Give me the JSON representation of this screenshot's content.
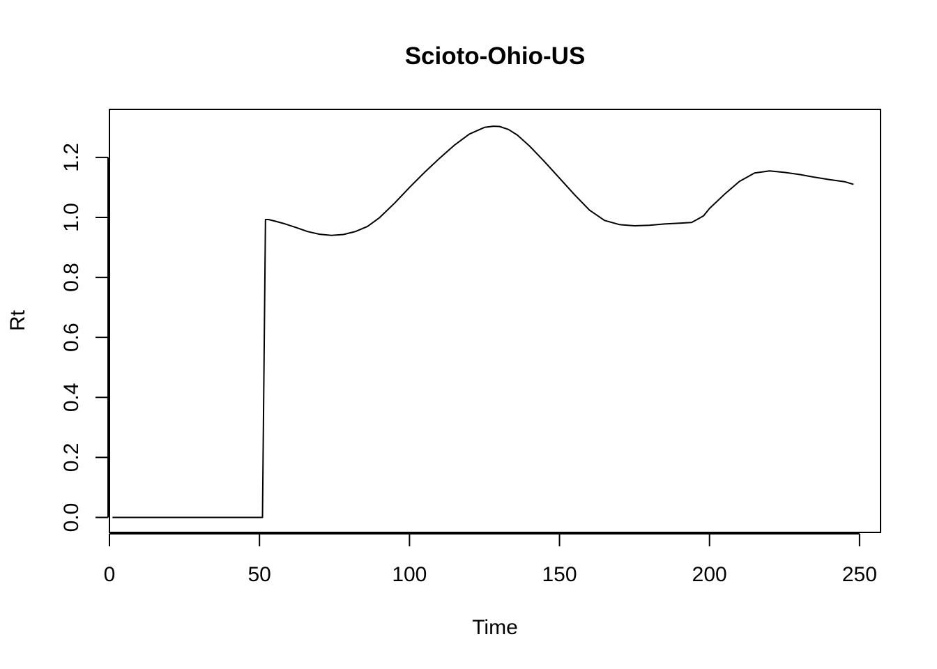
{
  "chart_data": {
    "type": "line",
    "title": "Scioto-Ohio-US",
    "xlabel": "Time",
    "ylabel": "Rt",
    "xlim": [
      0,
      257
    ],
    "ylim": [
      -0.05,
      1.36
    ],
    "x_ticks": [
      0,
      50,
      100,
      150,
      200,
      250
    ],
    "y_ticks": [
      0.0,
      0.2,
      0.4,
      0.6,
      0.8,
      1.0,
      1.2
    ],
    "x_tick_labels": [
      "0",
      "50",
      "100",
      "150",
      "200",
      "250"
    ],
    "y_tick_labels": [
      "0.0",
      "0.2",
      "0.4",
      "0.6",
      "0.8",
      "1.0",
      "1.2"
    ],
    "grid": false,
    "line_color": "#000000",
    "series": [
      {
        "x": [
          1,
          10,
          20,
          30,
          40,
          51,
          52,
          53,
          55,
          58,
          62,
          66,
          70,
          74,
          78,
          82,
          86,
          90,
          95,
          100,
          105,
          110,
          115,
          120,
          125,
          128,
          130,
          133,
          136,
          140,
          145,
          150,
          155,
          160,
          165,
          170,
          175,
          180,
          185,
          190,
          194,
          196,
          198,
          200,
          205,
          210,
          215,
          220,
          225,
          230,
          235,
          240,
          245,
          248
        ],
        "y": [
          0,
          0,
          0,
          0,
          0,
          0,
          0.993,
          0.993,
          0.988,
          0.98,
          0.967,
          0.953,
          0.944,
          0.94,
          0.943,
          0.953,
          0.97,
          0.999,
          1.047,
          1.1,
          1.15,
          1.197,
          1.241,
          1.278,
          1.3,
          1.304,
          1.303,
          1.293,
          1.274,
          1.238,
          1.186,
          1.131,
          1.076,
          1.024,
          0.99,
          0.976,
          0.972,
          0.974,
          0.978,
          0.981,
          0.983,
          0.994,
          1.005,
          1.03,
          1.077,
          1.12,
          1.148,
          1.155,
          1.15,
          1.143,
          1.134,
          1.126,
          1.119,
          1.11
        ]
      }
    ]
  }
}
